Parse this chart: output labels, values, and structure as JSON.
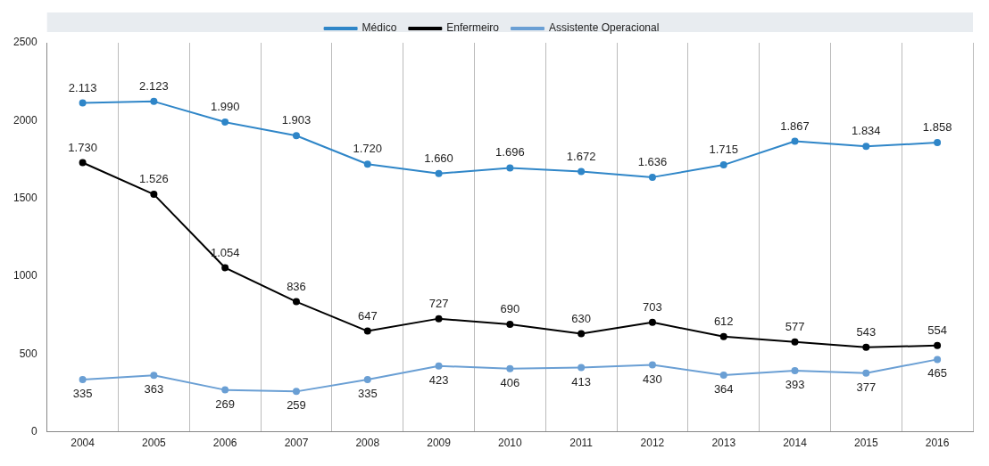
{
  "chart_data": {
    "type": "line",
    "categories": [
      "2004",
      "2005",
      "2006",
      "2007",
      "2008",
      "2009",
      "2010",
      "2011",
      "2012",
      "2013",
      "2014",
      "2015",
      "2016"
    ],
    "series": [
      {
        "name": "Médico",
        "color": "#2f86c8",
        "values": [
          2113,
          2123,
          1990,
          1903,
          1720,
          1660,
          1696,
          1672,
          1636,
          1715,
          1867,
          1834,
          1858
        ],
        "value_labels": [
          "2.113",
          "2.123",
          "1.990",
          "1.903",
          "1.720",
          "1.660",
          "1.696",
          "1.672",
          "1.636",
          "1.715",
          "1.867",
          "1.834",
          "1.858"
        ]
      },
      {
        "name": "Enfermeiro",
        "color": "#000000",
        "values": [
          1730,
          1526,
          1054,
          836,
          647,
          727,
          690,
          630,
          703,
          612,
          577,
          543,
          554
        ],
        "value_labels": [
          "1.730",
          "1.526",
          "1.054",
          "836",
          "647",
          "727",
          "690",
          "630",
          "703",
          "612",
          "577",
          "543",
          "554"
        ]
      },
      {
        "name": "Assistente Operacional",
        "color": "#6a9fd4",
        "values": [
          335,
          363,
          269,
          259,
          335,
          423,
          406,
          413,
          430,
          364,
          393,
          377,
          465
        ],
        "value_labels": [
          "335",
          "363",
          "269",
          "259",
          "335",
          "423",
          "406",
          "413",
          "430",
          "364",
          "393",
          "377",
          "465"
        ]
      }
    ],
    "ylim": [
      0,
      2500
    ],
    "yticks": [
      0,
      500,
      1000,
      1500,
      2000,
      2500
    ],
    "grid": "x",
    "legend": "top",
    "marker": "circle",
    "line_style": "solid"
  }
}
